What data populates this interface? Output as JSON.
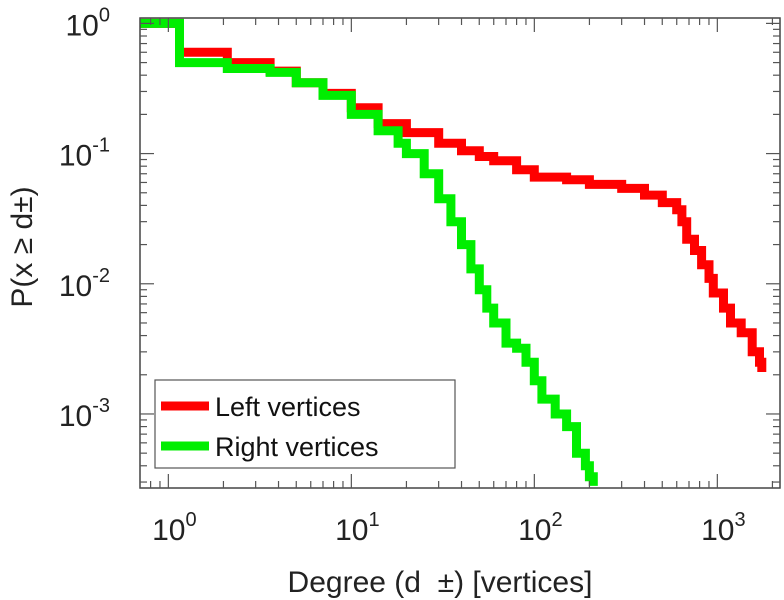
{
  "chart_data": {
    "type": "line",
    "style": "step",
    "title": "",
    "xlabel": "Degree (d  ±) [vertices]",
    "ylabel": "P(x ≥ d±)",
    "xscale": "log",
    "yscale": "log",
    "xlim": [
      0.7,
      2200
    ],
    "ylim": [
      0.00027,
      1.1
    ],
    "grid": false,
    "legend_position": "bottom-left",
    "x_ticks": [
      {
        "base": "10",
        "exp": "0",
        "value": 1
      },
      {
        "base": "10",
        "exp": "1",
        "value": 10
      },
      {
        "base": "10",
        "exp": "2",
        "value": 100
      },
      {
        "base": "10",
        "exp": "3",
        "value": 1000
      }
    ],
    "y_ticks": [
      {
        "base": "10",
        "exp": "0",
        "value": 1
      },
      {
        "base": "10",
        "exp": "-1",
        "value": 0.1
      },
      {
        "base": "10",
        "exp": "-2",
        "value": 0.01
      },
      {
        "base": "10",
        "exp": "-3",
        "value": 0.001
      }
    ],
    "series": [
      {
        "name": "Left vertices",
        "color": "#ff0000",
        "points": [
          [
            0.7,
            1.0
          ],
          [
            1.15,
            1.0
          ],
          [
            1.15,
            0.6
          ],
          [
            2.1,
            0.6
          ],
          [
            2.1,
            0.5
          ],
          [
            3.6,
            0.5
          ],
          [
            3.6,
            0.43
          ],
          [
            5,
            0.35
          ],
          [
            7,
            0.29
          ],
          [
            10,
            0.225
          ],
          [
            14,
            0.17
          ],
          [
            20,
            0.145
          ],
          [
            30,
            0.12
          ],
          [
            40,
            0.105
          ],
          [
            50,
            0.095
          ],
          [
            60,
            0.088
          ],
          [
            80,
            0.075
          ],
          [
            100,
            0.066
          ],
          [
            150,
            0.063
          ],
          [
            200,
            0.058
          ],
          [
            300,
            0.054
          ],
          [
            400,
            0.048
          ],
          [
            500,
            0.042
          ],
          [
            600,
            0.037
          ],
          [
            640,
            0.03
          ],
          [
            680,
            0.022
          ],
          [
            750,
            0.018
          ],
          [
            820,
            0.014
          ],
          [
            900,
            0.011
          ],
          [
            950,
            0.0085
          ],
          [
            1080,
            0.0065
          ],
          [
            1180,
            0.005
          ],
          [
            1350,
            0.0042
          ],
          [
            1550,
            0.003
          ],
          [
            1700,
            0.0025
          ],
          [
            1750,
            0.0021
          ]
        ]
      },
      {
        "name": "Right vertices",
        "color": "#00ee00",
        "points": [
          [
            0.7,
            1.0
          ],
          [
            1.15,
            1.0
          ],
          [
            1.15,
            0.5
          ],
          [
            2.1,
            0.5
          ],
          [
            2.1,
            0.45
          ],
          [
            3.6,
            0.42
          ],
          [
            5,
            0.35
          ],
          [
            7,
            0.28
          ],
          [
            10,
            0.2
          ],
          [
            14,
            0.15
          ],
          [
            18,
            0.12
          ],
          [
            20,
            0.1
          ],
          [
            25,
            0.07
          ],
          [
            30,
            0.045
          ],
          [
            35,
            0.03
          ],
          [
            40,
            0.02
          ],
          [
            45,
            0.013
          ],
          [
            50,
            0.009
          ],
          [
            55,
            0.0065
          ],
          [
            60,
            0.005
          ],
          [
            70,
            0.0035
          ],
          [
            80,
            0.0032
          ],
          [
            90,
            0.0025
          ],
          [
            100,
            0.0018
          ],
          [
            110,
            0.0013
          ],
          [
            130,
            0.001
          ],
          [
            150,
            0.0008
          ],
          [
            170,
            0.0005
          ],
          [
            190,
            0.0004
          ],
          [
            200,
            0.00033
          ],
          [
            210,
            0.00028
          ]
        ]
      }
    ]
  }
}
